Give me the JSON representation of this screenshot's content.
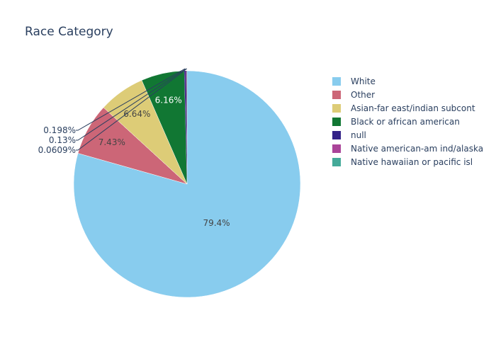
{
  "chart_data": {
    "type": "pie",
    "title": "Race Category",
    "slices": [
      {
        "label": "White",
        "value": 79.4,
        "display": "79.4%",
        "color": "#88CCEE"
      },
      {
        "label": "Other",
        "value": 7.43,
        "display": "7.43%",
        "color": "#CC6677"
      },
      {
        "label": "Asian-far east/indian subcont",
        "value": 6.64,
        "display": "6.64%",
        "color": "#DDCC77"
      },
      {
        "label": "Black or african american",
        "value": 6.16,
        "display": "6.16%",
        "color": "#117733"
      },
      {
        "label": "null",
        "value": 0.198,
        "display": "0.198%",
        "color": "#332288"
      },
      {
        "label": "Native american-am ind/alaska",
        "value": 0.13,
        "display": "0.13%",
        "color": "#AA4499"
      },
      {
        "label": "Native hawaiian or pacific isl",
        "value": 0.0609,
        "display": "0.0609%",
        "color": "#44AA99"
      }
    ],
    "legend_position": "right"
  }
}
